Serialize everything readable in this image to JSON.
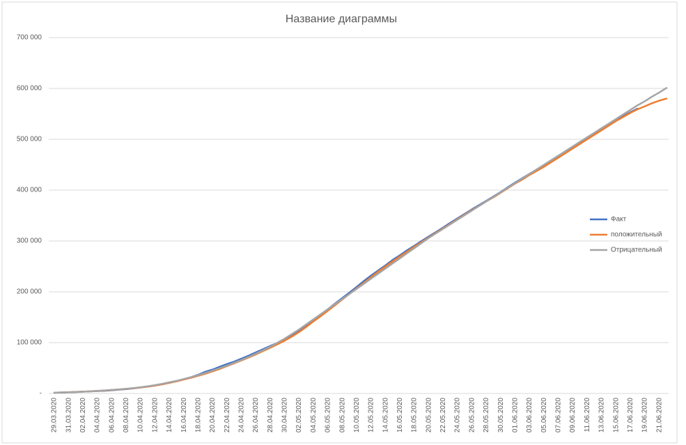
{
  "chart_data": {
    "type": "line",
    "title": "Название диаграммы",
    "categories": [
      "29.03.2020",
      null,
      "31.03.2020",
      null,
      "02.04.2020",
      null,
      "04.04.2020",
      null,
      "06.04.2020",
      null,
      "08.04.2020",
      null,
      "10.04.2020",
      null,
      "12.04.2020",
      null,
      "14.04.2020",
      null,
      "16.04.2020",
      null,
      "18.04.2020",
      null,
      "20.04.2020",
      null,
      "22.04.2020",
      null,
      "24.04.2020",
      null,
      "26.04.2020",
      null,
      "28.04.2020",
      null,
      "30.04.2020",
      null,
      "02.05.2020",
      null,
      "04.05.2020",
      null,
      "06.05.2020",
      null,
      "08.05.2020",
      null,
      "10.05.2020",
      null,
      "12.05.2020",
      null,
      "14.05.2020",
      null,
      "16.05.2020",
      null,
      "18.05.2020",
      null,
      "20.05.2020",
      null,
      "22.05.2020",
      null,
      "24.05.2020",
      null,
      "26.05.2020",
      null,
      "28.05.2020",
      null,
      "30.05.2020",
      null,
      "01.06.2020",
      null,
      "03.06.2020",
      null,
      "05.06.2020",
      null,
      "07.06.2020",
      null,
      "09.06.2020",
      null,
      "11.06.2020",
      null,
      "13.06.2020",
      null,
      "15.06.2020",
      null,
      "17.06.2020",
      null,
      "19.06.2020",
      null,
      "21.06.2020",
      null
    ],
    "series": [
      {
        "name": "Факт",
        "color": "#4472c4",
        "values": [
          1534,
          1836,
          2337,
          2777,
          3548,
          4149,
          4731,
          5389,
          6343,
          7497,
          8672,
          10131,
          11917,
          13584,
          15770,
          18328,
          21102,
          24490,
          27938,
          32008,
          36793,
          42853,
          47121,
          52763,
          57999,
          62773,
          68622,
          74588,
          80949,
          87147,
          93558,
          99399,
          106498,
          114431,
          124054,
          134687,
          145268,
          155370,
          165929,
          177160,
          187859,
          198676,
          209688,
          221344,
          232243,
          242271,
          252245,
          262843,
          272043,
          281752,
          290678,
          299941,
          308705,
          317554,
          326448,
          335882,
          344481,
          353427,
          362342,
          370680,
          379051,
          387623,
          396575,
          405843,
          414878,
          423741,
          432277,
          440538,
          449256,
          458102,
          467073,
          476043,
          485253,
          493657,
          502436,
          511423,
          520129,
          528964,
          537210,
          545458,
          553301,
          560321,
          null,
          null,
          null,
          null
        ]
      },
      {
        "name": "положительный",
        "color": "#ed7d31",
        "values": [
          1500,
          2000,
          2500,
          3000,
          3500,
          4200,
          5000,
          5800,
          6800,
          7800,
          9000,
          10300,
          11800,
          13500,
          15500,
          18000,
          21000,
          24000,
          27500,
          31000,
          35000,
          39000,
          43500,
          48500,
          54000,
          59500,
          65000,
          71000,
          77000,
          83500,
          90000,
          97000,
          104000,
          112000,
          121000,
          131000,
          142000,
          152000,
          163000,
          174000,
          185000,
          196000,
          207000,
          218000,
          229000,
          240000,
          250000,
          260000,
          270000,
          279000,
          289000,
          298000,
          307000,
          316000,
          325000,
          334000,
          343000,
          352000,
          361000,
          369000,
          378000,
          386000,
          395000,
          404000,
          413000,
          421000,
          430000,
          438000,
          446000,
          455000,
          464000,
          473000,
          482000,
          491000,
          500000,
          509000,
          518000,
          527000,
          536000,
          544000,
          552000,
          559000,
          565000,
          571000,
          576000,
          580000
        ]
      },
      {
        "name": "Отрицательный",
        "color": "#a5a5a5",
        "values": [
          1500,
          2000,
          2500,
          3000,
          3600,
          4300,
          5100,
          6000,
          7000,
          8100,
          9300,
          10700,
          12300,
          14200,
          16400,
          19000,
          22000,
          25000,
          28500,
          32000,
          36000,
          40500,
          45000,
          50000,
          55000,
          60500,
          66000,
          72000,
          78500,
          85000,
          92000,
          100000,
          108000,
          117000,
          126000,
          136000,
          146000,
          156000,
          166000,
          176000,
          186000,
          196000,
          206000,
          216000,
          226000,
          236000,
          246000,
          256000,
          266000,
          276000,
          286000,
          296000,
          306000,
          315000,
          324000,
          333000,
          342000,
          351000,
          360000,
          369000,
          378000,
          387000,
          396000,
          405000,
          414000,
          423000,
          432000,
          441000,
          450000,
          459000,
          468000,
          477000,
          486000,
          495000,
          504000,
          513000,
          522000,
          531000,
          540000,
          549000,
          558000,
          567000,
          575000,
          584000,
          592000,
          601000
        ]
      }
    ],
    "ylim": [
      0,
      700000
    ],
    "yticks": [
      {
        "value": 0,
        "label": "-"
      },
      {
        "value": 100000,
        "label": "100 000"
      },
      {
        "value": 200000,
        "label": "200 000"
      },
      {
        "value": 300000,
        "label": "300 000"
      },
      {
        "value": 400000,
        "label": "400 000"
      },
      {
        "value": 500000,
        "label": "500 000"
      },
      {
        "value": 600000,
        "label": "600 000"
      },
      {
        "value": 700000,
        "label": "700 000"
      }
    ],
    "grid": true,
    "legend": "right"
  }
}
